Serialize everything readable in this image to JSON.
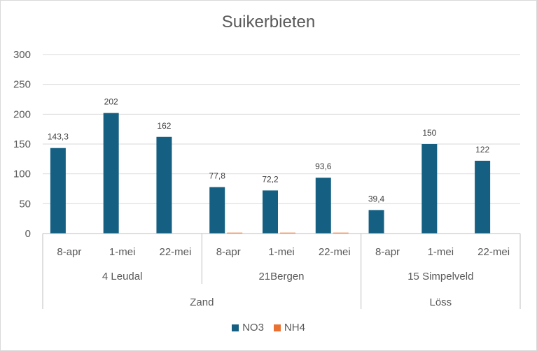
{
  "chart_data": {
    "type": "bar",
    "title": "Suikerbieten",
    "ylim": [
      0,
      300
    ],
    "yticks": [
      0,
      50,
      100,
      150,
      200,
      250,
      300
    ],
    "grid": true,
    "legend_position": "bottom",
    "groups": [
      {
        "name": "Zand",
        "sites": [
          {
            "name": "4 Leudal",
            "dates": [
              "8-apr",
              "1-mei",
              "22-mei"
            ]
          },
          {
            "name": "21Bergen",
            "dates": [
              "8-apr",
              "1-mei",
              "22-mei"
            ]
          }
        ]
      },
      {
        "name": "Löss",
        "sites": [
          {
            "name": "15 Simpelveld",
            "dates": [
              "8-apr",
              "1-mei",
              "22-mei"
            ]
          }
        ]
      }
    ],
    "series": [
      {
        "name": "NO3",
        "color": "#156082",
        "values": [
          143.3,
          202,
          162,
          77.8,
          72.2,
          93.6,
          39.4,
          150,
          122
        ],
        "labels": [
          "143,3",
          "202",
          "162",
          "77,8",
          "72,2",
          "93,6",
          "39,4",
          "150",
          "122"
        ]
      },
      {
        "name": "NH4",
        "color": "#e97132",
        "values": [
          null,
          null,
          null,
          1.5,
          1.5,
          1.5,
          null,
          null,
          null
        ],
        "labels": []
      }
    ]
  }
}
